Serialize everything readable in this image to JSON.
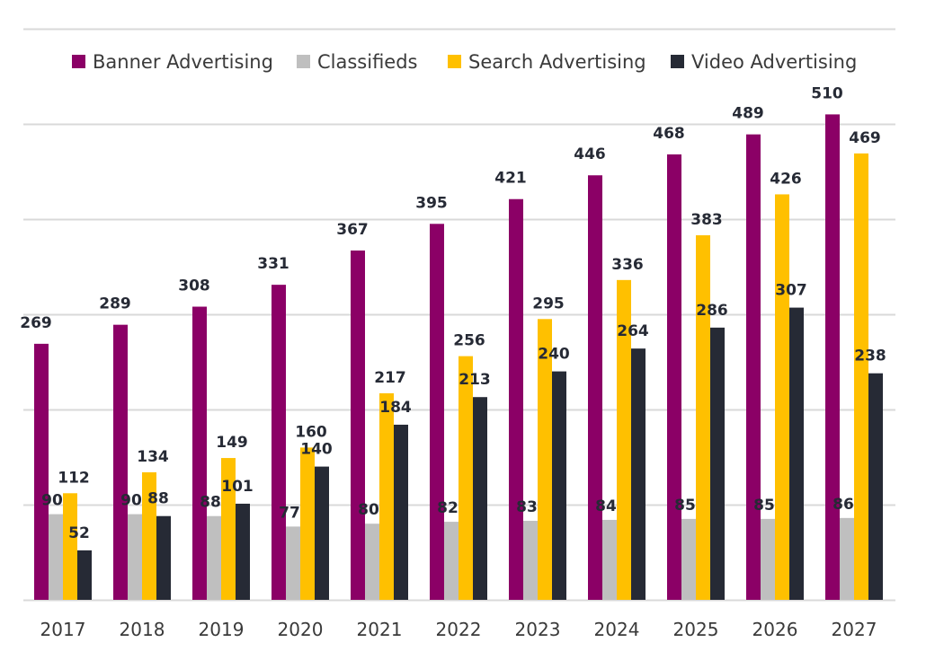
{
  "chart_data": {
    "type": "bar",
    "title": "",
    "xlabel": "",
    "ylabel": "",
    "ylim": [
      0,
      600
    ],
    "y_grid_step": 100,
    "grid": true,
    "y_tick_labels_visible": false,
    "legend_position": "top",
    "categories": [
      "2017",
      "2018",
      "2019",
      "2020",
      "2021",
      "2022",
      "2023",
      "2024",
      "2025",
      "2026",
      "2027"
    ],
    "series": [
      {
        "name": "Banner Advertising",
        "color": "#8b0066",
        "values": [
          269,
          289,
          308,
          331,
          367,
          395,
          421,
          446,
          468,
          489,
          510
        ]
      },
      {
        "name": "Classifieds",
        "color": "#bfbfbf",
        "values": [
          90,
          90,
          88,
          77,
          80,
          82,
          83,
          84,
          85,
          85,
          86
        ]
      },
      {
        "name": "Search Advertising",
        "color": "#ffc000",
        "values": [
          112,
          134,
          149,
          160,
          217,
          256,
          295,
          336,
          383,
          426,
          469
        ]
      },
      {
        "name": "Video Advertising",
        "color": "#262a35",
        "values": [
          52,
          88,
          101,
          140,
          184,
          213,
          240,
          264,
          286,
          307,
          238
        ]
      }
    ]
  }
}
